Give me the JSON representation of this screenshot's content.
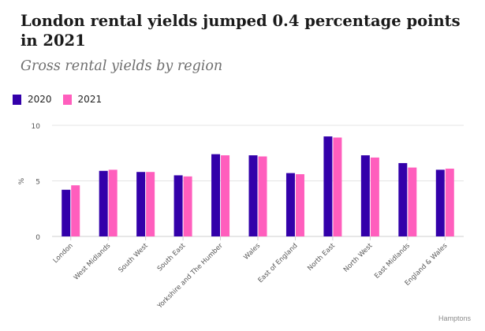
{
  "title": "London rental yields jumped 0.4 percentage points in 2021",
  "subtitle": "Gross rental yields by region",
  "source": "Hamptons",
  "chart_data": {
    "type": "bar",
    "ylabel": "%",
    "ylim": [
      0,
      10
    ],
    "yticks": [
      0,
      5,
      10
    ],
    "grid": true,
    "legend_position": "top-left",
    "categories": [
      "London",
      "West Midlands",
      "South West",
      "South East",
      "Yorkshire and The Humber",
      "Wales",
      "East of England",
      "North East",
      "North West",
      "East Midlands",
      "England & Wales"
    ],
    "series": [
      {
        "name": "2020",
        "color": "#3300aa",
        "values": [
          4.2,
          5.9,
          5.8,
          5.5,
          7.4,
          7.3,
          5.7,
          9.0,
          7.3,
          6.6,
          6.0
        ]
      },
      {
        "name": "2021",
        "color": "#ff5ebd",
        "values": [
          4.6,
          6.0,
          5.8,
          5.4,
          7.3,
          7.2,
          5.6,
          8.9,
          7.1,
          6.2,
          6.1
        ]
      }
    ]
  }
}
